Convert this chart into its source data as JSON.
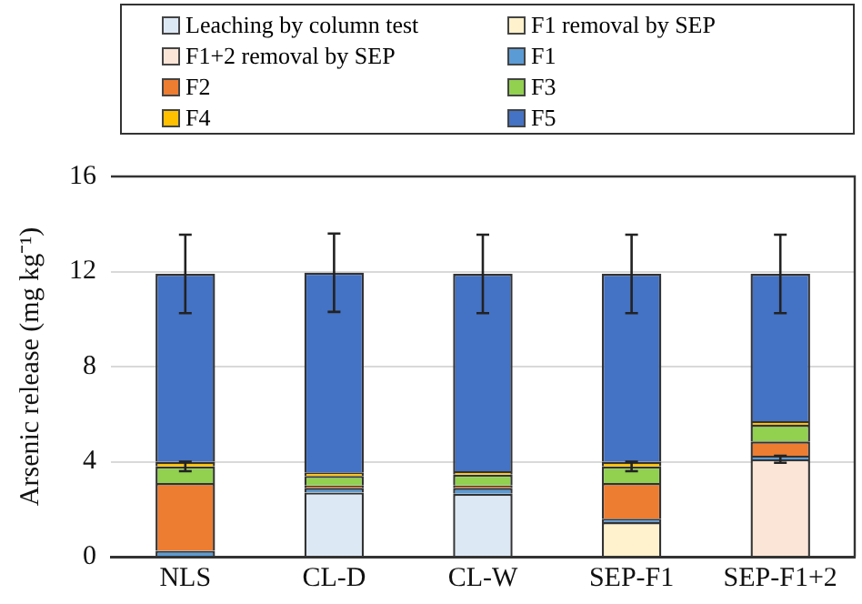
{
  "chart_data": {
    "type": "bar",
    "stacked": true,
    "ylabel": "Arsenic release (mg kg⁻¹)",
    "categories": [
      "NLS",
      "CL-D",
      "CL-W",
      "SEP-F1",
      "SEP-F1+2"
    ],
    "series": [
      {
        "name": "Leaching by column test",
        "color": "#dde8f5",
        "values": [
          null,
          2.7,
          2.65,
          null,
          null
        ]
      },
      {
        "name": "F1 removal by SEP",
        "color": "#fff2cc",
        "values": [
          null,
          null,
          null,
          1.45,
          null
        ]
      },
      {
        "name": "F1+2 removal by SEP",
        "color": "#fbe5d6",
        "values": [
          null,
          null,
          null,
          null,
          4.1
        ],
        "errors": [
          null,
          null,
          null,
          null,
          0.15
        ]
      },
      {
        "name": "F1",
        "color": "#5b9bd5",
        "values": [
          0.25,
          0.2,
          0.25,
          0.15,
          0.15
        ]
      },
      {
        "name": "F2",
        "color": "#ed7d31",
        "values": [
          2.85,
          0.1,
          0.1,
          1.5,
          0.6
        ]
      },
      {
        "name": "F3",
        "color": "#92d050",
        "values": [
          0.7,
          0.4,
          0.45,
          0.7,
          0.7
        ],
        "errors": [
          0.2,
          null,
          null,
          0.2,
          null
        ]
      },
      {
        "name": "F4",
        "color": "#ffc000",
        "values": [
          0.2,
          0.15,
          0.15,
          0.2,
          0.15
        ]
      },
      {
        "name": "F5",
        "color": "#4472c4",
        "values": [
          7.9,
          8.4,
          8.3,
          7.9,
          6.2
        ],
        "errors": [
          1.65,
          1.65,
          1.65,
          1.65,
          1.65
        ]
      }
    ],
    "ylim": [
      0,
      16
    ],
    "yticks": [
      0,
      4,
      8,
      12,
      16
    ],
    "grid": "y",
    "legend": "top"
  }
}
